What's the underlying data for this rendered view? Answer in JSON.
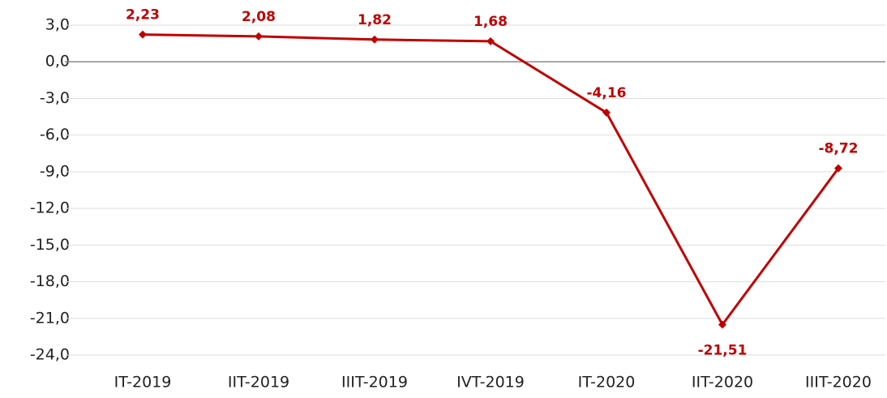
{
  "chart_data": {
    "type": "line",
    "categories": [
      "IT-2019",
      "IIT-2019",
      "IIIT-2019",
      "IVT-2019",
      "IT-2020",
      "IIT-2020",
      "IIIT-2020"
    ],
    "values": [
      2.23,
      2.08,
      1.82,
      1.68,
      -4.16,
      -21.51,
      -8.72
    ],
    "value_labels": [
      "2,23",
      "2,08",
      "1,82",
      "1,68",
      "-4,16",
      "-21,51",
      "-8,72"
    ],
    "color": "#c00000",
    "ylim": [
      -24,
      3
    ],
    "yticks": [
      {
        "value": 3,
        "label": "3,0"
      },
      {
        "value": 0,
        "label": "0,0"
      },
      {
        "value": -3,
        "label": "-3,0"
      },
      {
        "value": -6,
        "label": "-6,0"
      },
      {
        "value": -9,
        "label": "-9,0"
      },
      {
        "value": -12,
        "label": "-12,0"
      },
      {
        "value": -15,
        "label": "-15,0"
      },
      {
        "value": -18,
        "label": "-18,0"
      },
      {
        "value": -21,
        "label": "-21,0"
      },
      {
        "value": -24,
        "label": "-24,0"
      }
    ],
    "grid": true
  }
}
